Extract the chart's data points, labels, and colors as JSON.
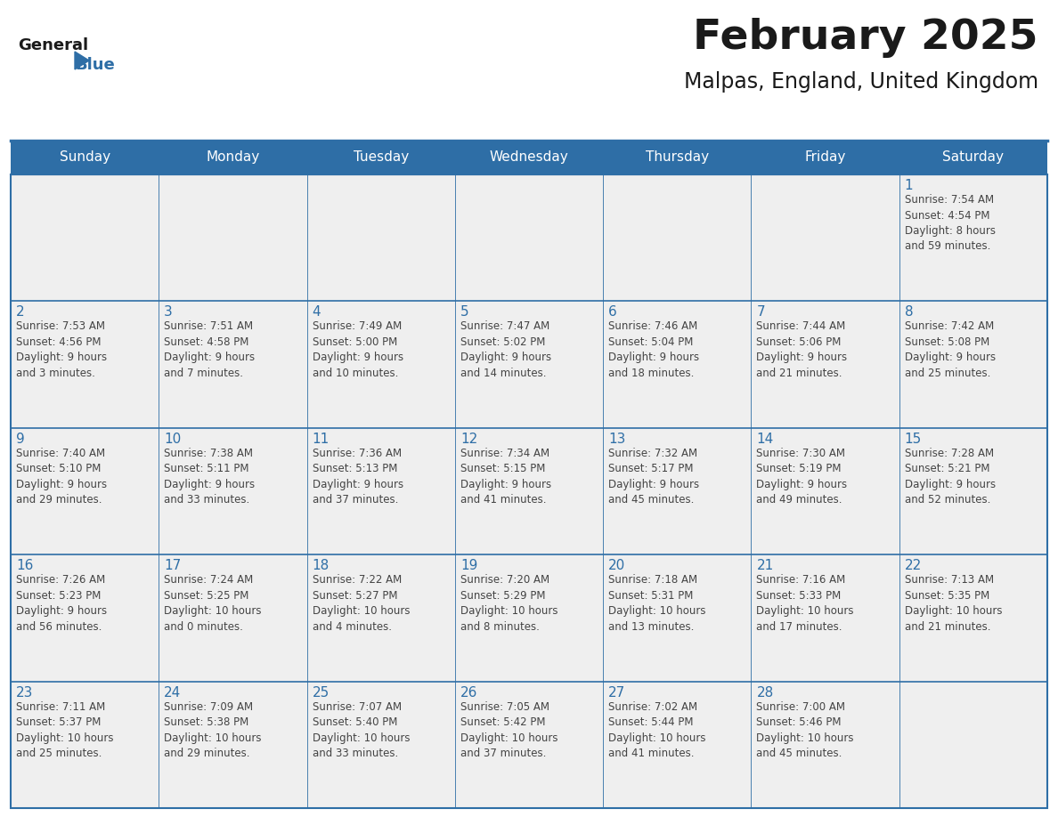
{
  "title": "February 2025",
  "subtitle": "Malpas, England, United Kingdom",
  "days_of_week": [
    "Sunday",
    "Monday",
    "Tuesday",
    "Wednesday",
    "Thursday",
    "Friday",
    "Saturday"
  ],
  "header_bg": "#2E6EA6",
  "header_text": "#FFFFFF",
  "cell_bg": "#EFEFEF",
  "border_color": "#2E6EA6",
  "day_number_color": "#2E6EA6",
  "cell_text_color": "#444444",
  "title_color": "#1a1a1a",
  "subtitle_color": "#1a1a1a",
  "logo_general_color": "#1a1a1a",
  "logo_blue_color": "#2E6EA6",
  "weeks": [
    [
      {
        "day": null,
        "info": null
      },
      {
        "day": null,
        "info": null
      },
      {
        "day": null,
        "info": null
      },
      {
        "day": null,
        "info": null
      },
      {
        "day": null,
        "info": null
      },
      {
        "day": null,
        "info": null
      },
      {
        "day": 1,
        "info": "Sunrise: 7:54 AM\nSunset: 4:54 PM\nDaylight: 8 hours\nand 59 minutes."
      }
    ],
    [
      {
        "day": 2,
        "info": "Sunrise: 7:53 AM\nSunset: 4:56 PM\nDaylight: 9 hours\nand 3 minutes."
      },
      {
        "day": 3,
        "info": "Sunrise: 7:51 AM\nSunset: 4:58 PM\nDaylight: 9 hours\nand 7 minutes."
      },
      {
        "day": 4,
        "info": "Sunrise: 7:49 AM\nSunset: 5:00 PM\nDaylight: 9 hours\nand 10 minutes."
      },
      {
        "day": 5,
        "info": "Sunrise: 7:47 AM\nSunset: 5:02 PM\nDaylight: 9 hours\nand 14 minutes."
      },
      {
        "day": 6,
        "info": "Sunrise: 7:46 AM\nSunset: 5:04 PM\nDaylight: 9 hours\nand 18 minutes."
      },
      {
        "day": 7,
        "info": "Sunrise: 7:44 AM\nSunset: 5:06 PM\nDaylight: 9 hours\nand 21 minutes."
      },
      {
        "day": 8,
        "info": "Sunrise: 7:42 AM\nSunset: 5:08 PM\nDaylight: 9 hours\nand 25 minutes."
      }
    ],
    [
      {
        "day": 9,
        "info": "Sunrise: 7:40 AM\nSunset: 5:10 PM\nDaylight: 9 hours\nand 29 minutes."
      },
      {
        "day": 10,
        "info": "Sunrise: 7:38 AM\nSunset: 5:11 PM\nDaylight: 9 hours\nand 33 minutes."
      },
      {
        "day": 11,
        "info": "Sunrise: 7:36 AM\nSunset: 5:13 PM\nDaylight: 9 hours\nand 37 minutes."
      },
      {
        "day": 12,
        "info": "Sunrise: 7:34 AM\nSunset: 5:15 PM\nDaylight: 9 hours\nand 41 minutes."
      },
      {
        "day": 13,
        "info": "Sunrise: 7:32 AM\nSunset: 5:17 PM\nDaylight: 9 hours\nand 45 minutes."
      },
      {
        "day": 14,
        "info": "Sunrise: 7:30 AM\nSunset: 5:19 PM\nDaylight: 9 hours\nand 49 minutes."
      },
      {
        "day": 15,
        "info": "Sunrise: 7:28 AM\nSunset: 5:21 PM\nDaylight: 9 hours\nand 52 minutes."
      }
    ],
    [
      {
        "day": 16,
        "info": "Sunrise: 7:26 AM\nSunset: 5:23 PM\nDaylight: 9 hours\nand 56 minutes."
      },
      {
        "day": 17,
        "info": "Sunrise: 7:24 AM\nSunset: 5:25 PM\nDaylight: 10 hours\nand 0 minutes."
      },
      {
        "day": 18,
        "info": "Sunrise: 7:22 AM\nSunset: 5:27 PM\nDaylight: 10 hours\nand 4 minutes."
      },
      {
        "day": 19,
        "info": "Sunrise: 7:20 AM\nSunset: 5:29 PM\nDaylight: 10 hours\nand 8 minutes."
      },
      {
        "day": 20,
        "info": "Sunrise: 7:18 AM\nSunset: 5:31 PM\nDaylight: 10 hours\nand 13 minutes."
      },
      {
        "day": 21,
        "info": "Sunrise: 7:16 AM\nSunset: 5:33 PM\nDaylight: 10 hours\nand 17 minutes."
      },
      {
        "day": 22,
        "info": "Sunrise: 7:13 AM\nSunset: 5:35 PM\nDaylight: 10 hours\nand 21 minutes."
      }
    ],
    [
      {
        "day": 23,
        "info": "Sunrise: 7:11 AM\nSunset: 5:37 PM\nDaylight: 10 hours\nand 25 minutes."
      },
      {
        "day": 24,
        "info": "Sunrise: 7:09 AM\nSunset: 5:38 PM\nDaylight: 10 hours\nand 29 minutes."
      },
      {
        "day": 25,
        "info": "Sunrise: 7:07 AM\nSunset: 5:40 PM\nDaylight: 10 hours\nand 33 minutes."
      },
      {
        "day": 26,
        "info": "Sunrise: 7:05 AM\nSunset: 5:42 PM\nDaylight: 10 hours\nand 37 minutes."
      },
      {
        "day": 27,
        "info": "Sunrise: 7:02 AM\nSunset: 5:44 PM\nDaylight: 10 hours\nand 41 minutes."
      },
      {
        "day": 28,
        "info": "Sunrise: 7:00 AM\nSunset: 5:46 PM\nDaylight: 10 hours\nand 45 minutes."
      },
      {
        "day": null,
        "info": null
      }
    ]
  ]
}
